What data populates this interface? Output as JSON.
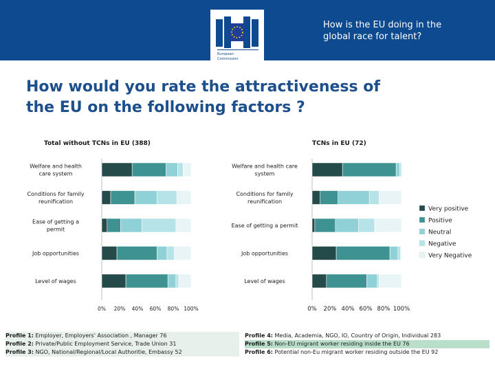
{
  "header": {
    "logo_line1": "European",
    "logo_line2": "Commission",
    "slide_title_line1": "How is the EU doing in the",
    "slide_title_line2": "global race for talent?"
  },
  "question": {
    "line1": "How would you rate the attractiveness of",
    "line2": "the EU on the following factors ?"
  },
  "colors": {
    "very_positive": "#254a4a",
    "positive": "#3f9292",
    "neutral": "#8fd1d6",
    "negative": "#b6e3e8",
    "very_negative": "#e9f4f6",
    "header_blue": "#0e4a8f",
    "title_blue": "#1d4f8d"
  },
  "chart_data": [
    {
      "type": "bar",
      "orientation": "horizontal",
      "stacked": true,
      "title": "Total  without TCNs in EU (388)",
      "categories": [
        "Welfare and health care system",
        "Conditions for family reunification",
        "Ease of getting a permit",
        "Job opportunities",
        "Level of wages"
      ],
      "series": [
        {
          "name": "Very positive",
          "values": [
            34,
            10,
            6,
            17,
            27
          ]
        },
        {
          "name": "Positive",
          "values": [
            38,
            27,
            15,
            45,
            47
          ]
        },
        {
          "name": "Neutral",
          "values": [
            13,
            25,
            24,
            11,
            9
          ]
        },
        {
          "name": "Negative",
          "values": [
            6,
            22,
            38,
            8,
            3
          ]
        },
        {
          "name": "Very Negative",
          "values": [
            9,
            16,
            17,
            19,
            14
          ]
        }
      ],
      "xticks": [
        "0%",
        "20%",
        "40%",
        "60%",
        "80%",
        "100%"
      ],
      "xlim": [
        0,
        100
      ]
    },
    {
      "type": "bar",
      "orientation": "horizontal",
      "stacked": true,
      "title": "TCNs in EU (72)",
      "categories": [
        "Welfare and health care system",
        "Conditions for family reunification",
        "Ease of getting a permit",
        "Job opportunities",
        "Level of wages"
      ],
      "series": [
        {
          "name": "Very positive",
          "values": [
            34,
            9,
            3,
            27,
            16
          ]
        },
        {
          "name": "Positive",
          "values": [
            60,
            20,
            23,
            60,
            45
          ]
        },
        {
          "name": "Neutral",
          "values": [
            4,
            35,
            26,
            9,
            12
          ]
        },
        {
          "name": "Negative",
          "values": [
            2,
            11,
            18,
            3,
            2
          ]
        },
        {
          "name": "Very Negative",
          "values": [
            0,
            25,
            30,
            1,
            25
          ]
        }
      ],
      "xticks": [
        "0%",
        "20%",
        "40%",
        "60%",
        "80%",
        "100%"
      ],
      "xlim": [
        0,
        100
      ]
    }
  ],
  "legend": [
    "Very positive",
    "Positive",
    "Neutral",
    "Negative",
    "Very Negative"
  ],
  "profiles_left": [
    {
      "label": "Profile 1:",
      "text": " Employer, Employers' Association , Manager 76"
    },
    {
      "label": "Profile 2:",
      "text": " Private/Public Employment Service, Trade Union 31"
    },
    {
      "label": "Profile 3:",
      "text": " NGO, National/Regional/Local Authoritie, Embassy 52"
    }
  ],
  "profiles_right": [
    {
      "label": "Profile 4:",
      "text": " Media, Academia, NGO, IO, Country of Origin, Individual 283"
    },
    {
      "label": "Profile 5:",
      "text": " Non-EU migrant worker residing inside the EU 76"
    },
    {
      "label": "Profile 6:",
      "text": " Potential non-Eu migrant worker residing outside the EU 92"
    }
  ]
}
